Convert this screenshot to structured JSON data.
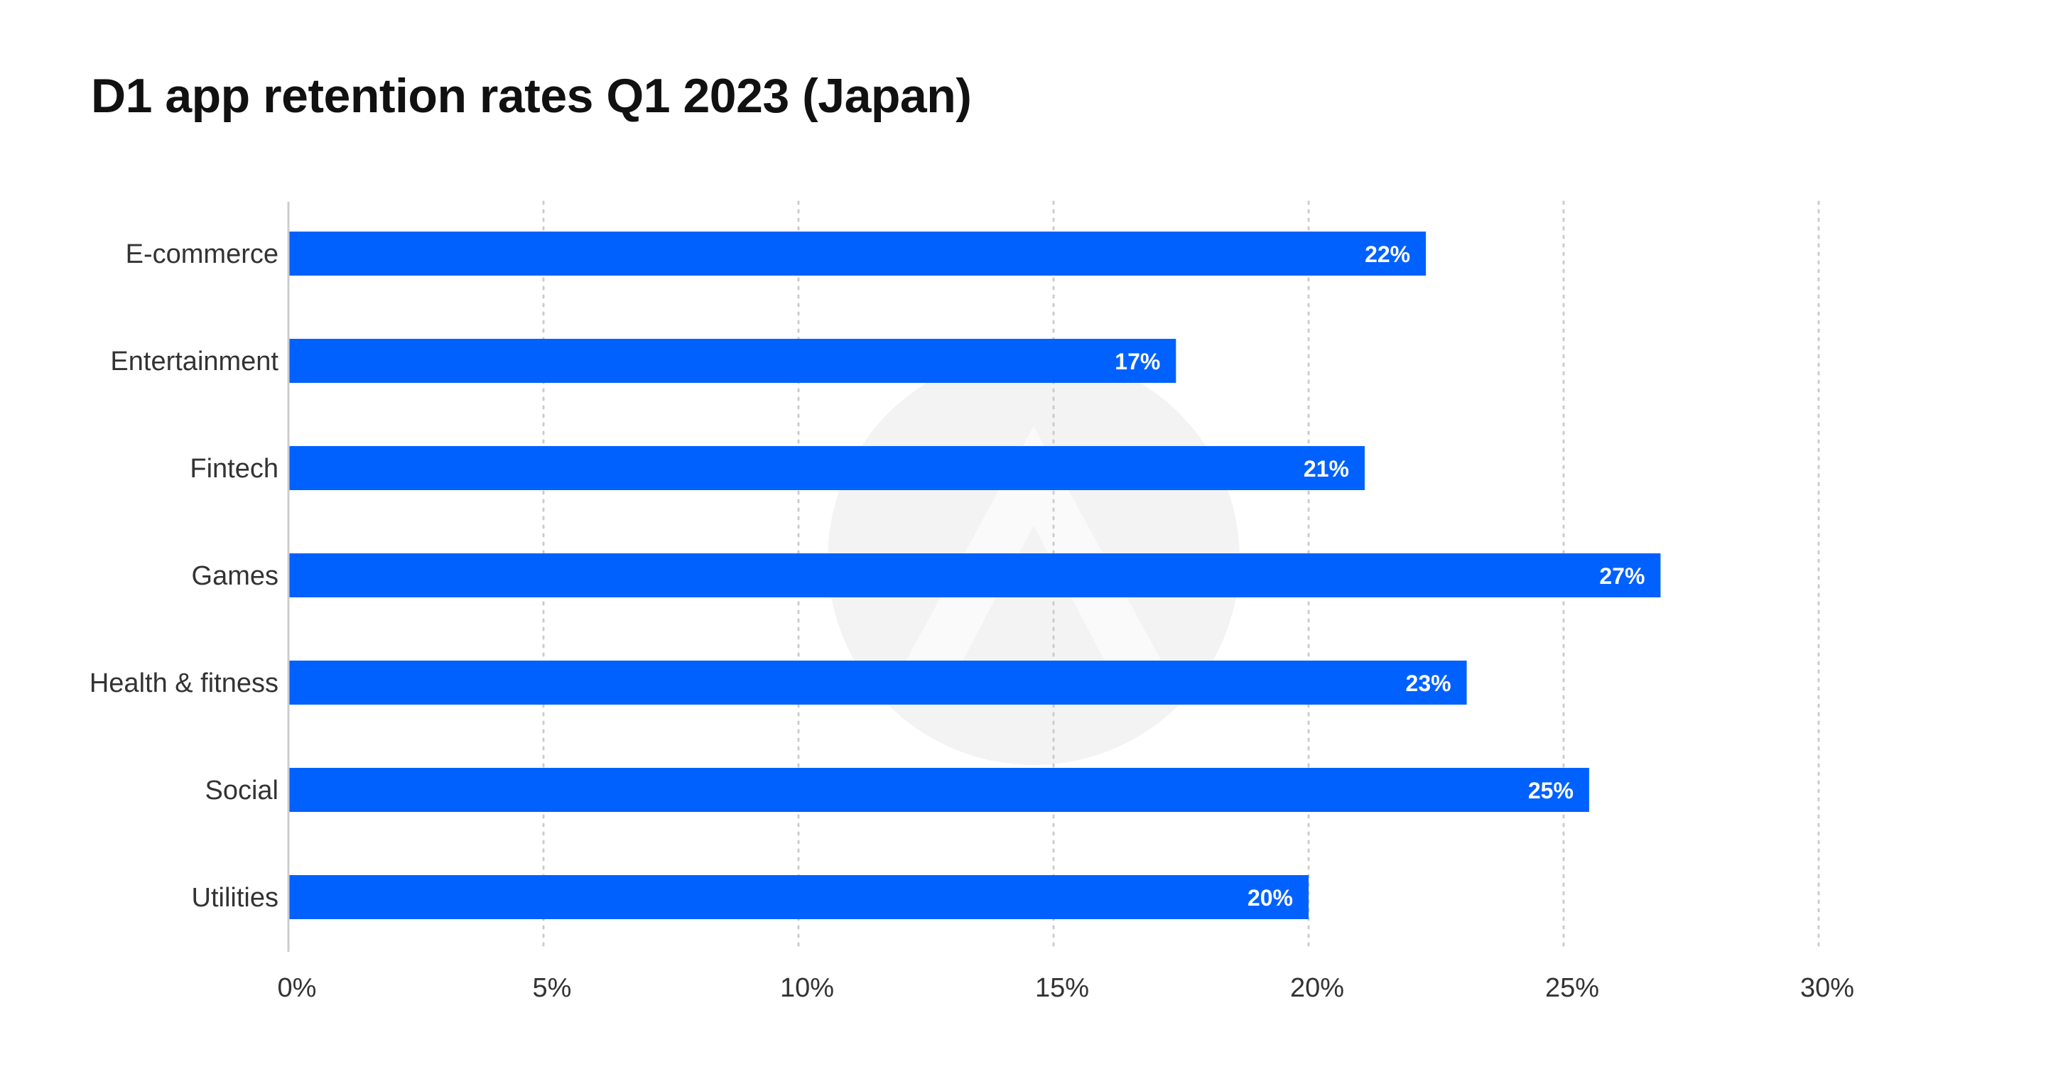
{
  "chart_data": {
    "type": "bar",
    "orientation": "horizontal",
    "title": "D1 app retention rates Q1 2023 (Japan)",
    "categories": [
      "E-commerce",
      "Entertainment",
      "Fintech",
      "Games",
      "Health & fitness",
      "Social",
      "Utilities"
    ],
    "values": [
      22.3,
      17.4,
      21.1,
      26.9,
      23.1,
      25.5,
      20.0
    ],
    "data_labels": [
      "22%",
      "17%",
      "21%",
      "27%",
      "23%",
      "25%",
      "20%"
    ],
    "xlim": [
      0,
      30
    ],
    "x_ticks": [
      0,
      5,
      10,
      15,
      20,
      25,
      30
    ],
    "x_tick_labels": [
      "0%",
      "5%",
      "10%",
      "15%",
      "20%",
      "25%",
      "30%"
    ],
    "xlabel": "",
    "ylabel": "",
    "grid": "vertical dotted",
    "legend": "none",
    "bar_color": "#0061ff",
    "gridline_color": "#cccccc",
    "axis_color": "#cccccc",
    "watermark_color": "#f3f3f3"
  }
}
